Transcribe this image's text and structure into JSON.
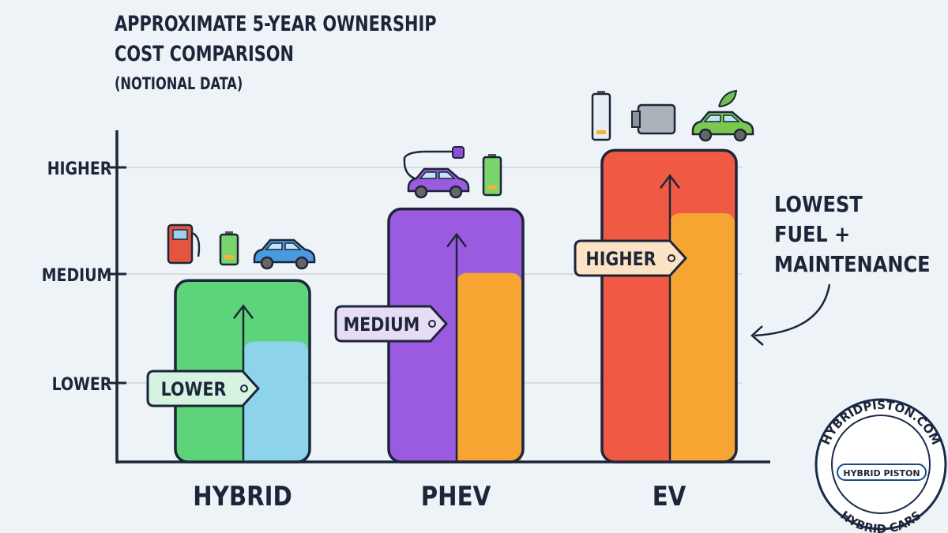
{
  "chart_data": {
    "type": "bar",
    "title": "APPROXIMATE 5-YEAR OWNERSHIP COST COMPARISON",
    "subtitle": "(NOTIONAL DATA)",
    "y_ticks": [
      "LOWER",
      "MEDIUM",
      "HIGHER"
    ],
    "categories": [
      "HYBRID",
      "PHEV",
      "EV"
    ],
    "series": [
      {
        "values": [
          1.94,
          2.61,
          3.16
        ]
      },
      {
        "values": [
          1.38,
          2.01,
          2.57
        ]
      }
    ],
    "tags": [
      "LOWER",
      "MEDIUM",
      "HIGHER"
    ],
    "ylim": [
      0,
      3.4
    ],
    "grid": true,
    "annotation": [
      "LOWEST",
      "FUEL +",
      "MAINTENANCE"
    ],
    "colors": {
      "bars": [
        [
          "#5ed47a",
          "#8dd3ea"
        ],
        [
          "#9a5be0",
          "#f7a532"
        ],
        [
          "#f05a44",
          "#f7a532"
        ]
      ],
      "tag_fill": [
        "#d6f3e2",
        "#e6dcf5",
        "#fde3c6"
      ]
    },
    "icons": [
      [
        "fuel-pump-icon",
        "battery-icon",
        "car-icon"
      ],
      [
        "plug-in-car-icon",
        "battery-charging-icon"
      ],
      [
        "battery-level-icon",
        "electric-motor-icon",
        "eco-electric-car-icon"
      ]
    ]
  },
  "logo": {
    "text_top": "HYBRIDPISTON.COM",
    "text_center": "HYBRID PISTON",
    "text_bottom": "HYBRID CARS"
  }
}
